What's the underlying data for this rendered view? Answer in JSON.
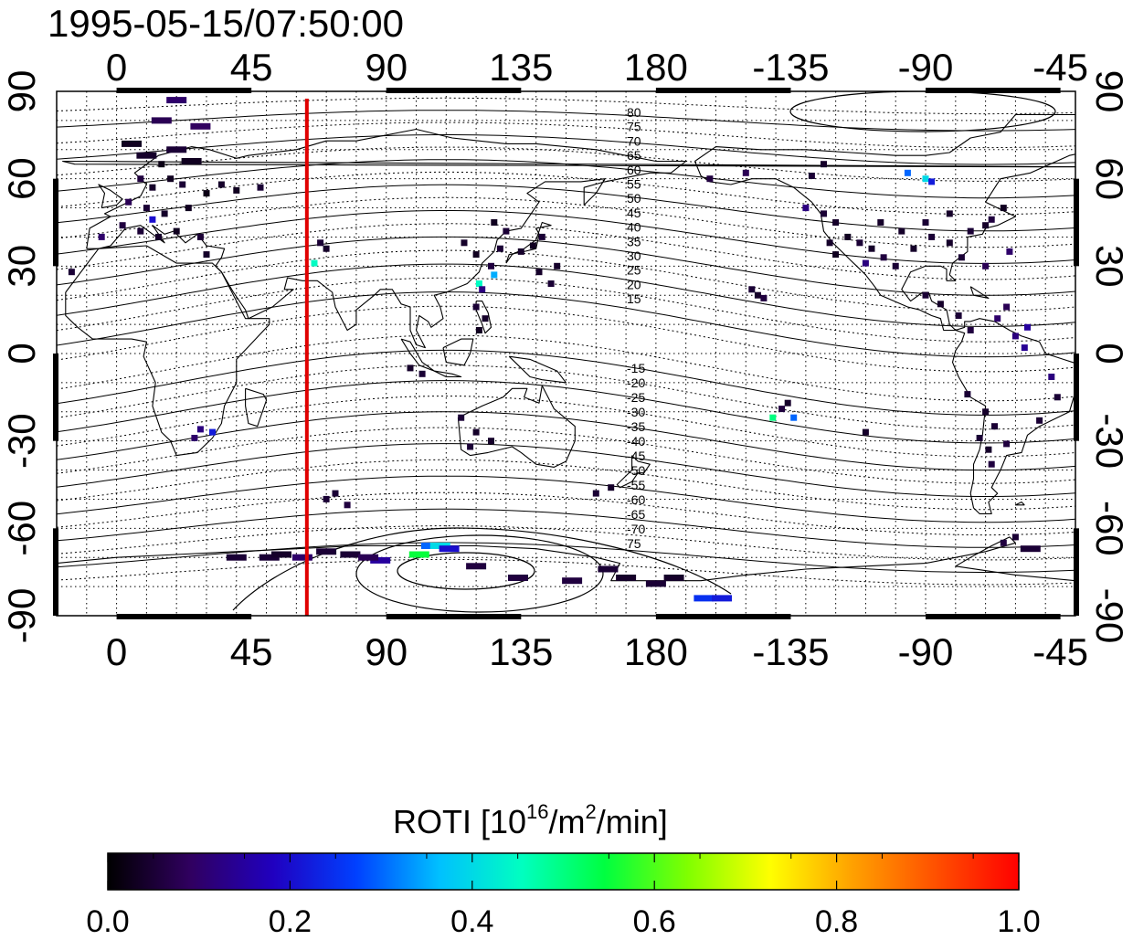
{
  "chart_data": {
    "type": "heatmap",
    "title": "1995-05-15/07:50:00",
    "x_top_ticks": [
      "0",
      "45",
      "90",
      "135",
      "180",
      "-135",
      "-90",
      "-45"
    ],
    "x_bottom_ticks": [
      "0",
      "45",
      "90",
      "135",
      "180",
      "-135",
      "-90",
      "-45"
    ],
    "y_left_ticks": [
      "90",
      "60",
      "30",
      "0",
      "-30",
      "-60",
      "-90"
    ],
    "y_right_ticks": [
      "90",
      "60",
      "30",
      "0",
      "-30",
      "-60",
      "-90"
    ],
    "xlim_lon": [
      -20,
      320
    ],
    "ylim_lat": [
      -90,
      90
    ],
    "grid": "dotted",
    "terminator_lon": 63.5,
    "terminator_color": "#e00000",
    "contour_labels_north": [
      "80",
      "75",
      "70",
      "65",
      "60",
      "55",
      "50",
      "45",
      "40",
      "35",
      "30",
      "25",
      "20",
      "15"
    ],
    "contour_labels_south": [
      "-15",
      "-20",
      "-25",
      "-30",
      "-35",
      "-40",
      "-45",
      "-50",
      "-55",
      "-60",
      "-65",
      "-70",
      "75"
    ],
    "colorbar": {
      "label_main": "ROTI  [10",
      "label_sup1": "16",
      "label_mid": "/m",
      "label_sup2": "2",
      "label_end": "/min]",
      "min": 0.0,
      "max": 1.0,
      "tick_labels": [
        "0.0",
        "0.2",
        "0.4",
        "0.6",
        "0.8",
        "1.0"
      ],
      "colors": [
        "#000000",
        "#300060",
        "#2000c0",
        "#0040ff",
        "#00c0ff",
        "#00ffc0",
        "#00ff40",
        "#80ff00",
        "#ffff00",
        "#ffa000",
        "#ff5000",
        "#ff0000"
      ]
    },
    "points": [
      {
        "lon": 5,
        "lat": 72,
        "v": 0.03
      },
      {
        "lon": 10,
        "lat": 68,
        "v": 0.04
      },
      {
        "lon": 15,
        "lat": 65,
        "v": 0.02
      },
      {
        "lon": 20,
        "lat": 70,
        "v": 0.05
      },
      {
        "lon": 25,
        "lat": 66,
        "v": 0.03
      },
      {
        "lon": 8,
        "lat": 60,
        "v": 0.06
      },
      {
        "lon": 12,
        "lat": 57,
        "v": 0.04
      },
      {
        "lon": 18,
        "lat": 60,
        "v": 0.03
      },
      {
        "lon": 22,
        "lat": 58,
        "v": 0.05
      },
      {
        "lon": 4,
        "lat": 52,
        "v": 0.08
      },
      {
        "lon": 10,
        "lat": 50,
        "v": 0.05
      },
      {
        "lon": 16,
        "lat": 48,
        "v": 0.04
      },
      {
        "lon": 24,
        "lat": 50,
        "v": 0.03
      },
      {
        "lon": 30,
        "lat": 55,
        "v": 0.02
      },
      {
        "lon": 35,
        "lat": 58,
        "v": 0.04
      },
      {
        "lon": 40,
        "lat": 56,
        "v": 0.03
      },
      {
        "lon": 48,
        "lat": 57,
        "v": 0.05
      },
      {
        "lon": 2,
        "lat": 44,
        "v": 0.06
      },
      {
        "lon": 8,
        "lat": 42,
        "v": 0.05
      },
      {
        "lon": 14,
        "lat": 40,
        "v": 0.04
      },
      {
        "lon": 20,
        "lat": 42,
        "v": 0.03
      },
      {
        "lon": 28,
        "lat": 40,
        "v": 0.05
      },
      {
        "lon": -5,
        "lat": 40,
        "v": 0.1
      },
      {
        "lon": 30,
        "lat": 34,
        "v": 0.04
      },
      {
        "lon": 15,
        "lat": 80,
        "v": 0.08
      },
      {
        "lon": 20,
        "lat": 87,
        "v": 0.1
      },
      {
        "lon": 28,
        "lat": 78,
        "v": 0.09
      },
      {
        "lon": -15,
        "lat": 28,
        "v": 0.05
      },
      {
        "lon": 12,
        "lat": 46,
        "v": 0.2
      },
      {
        "lon": 68,
        "lat": 38,
        "v": 0.05
      },
      {
        "lon": 70,
        "lat": 36,
        "v": 0.04
      },
      {
        "lon": 66,
        "lat": 31,
        "v": 0.45
      },
      {
        "lon": 116,
        "lat": 38,
        "v": 0.04
      },
      {
        "lon": 120,
        "lat": 34,
        "v": 0.03
      },
      {
        "lon": 128,
        "lat": 36,
        "v": 0.05
      },
      {
        "lon": 135,
        "lat": 35,
        "v": 0.04
      },
      {
        "lon": 139,
        "lat": 37,
        "v": 0.03
      },
      {
        "lon": 142,
        "lat": 40,
        "v": 0.05
      },
      {
        "lon": 125,
        "lat": 30,
        "v": 0.06
      },
      {
        "lon": 126,
        "lat": 27,
        "v": 0.35
      },
      {
        "lon": 121,
        "lat": 24,
        "v": 0.45
      },
      {
        "lon": 122,
        "lat": 22,
        "v": 0.12
      },
      {
        "lon": 120,
        "lat": 16,
        "v": 0.05
      },
      {
        "lon": 123,
        "lat": 12,
        "v": 0.04
      },
      {
        "lon": 121,
        "lat": 8,
        "v": 0.03
      },
      {
        "lon": 141,
        "lat": 28,
        "v": 0.04
      },
      {
        "lon": 145,
        "lat": 24,
        "v": 0.05
      },
      {
        "lon": 147,
        "lat": 30,
        "v": 0.04
      },
      {
        "lon": 126,
        "lat": 45,
        "v": 0.03
      },
      {
        "lon": 130,
        "lat": 42,
        "v": 0.05
      },
      {
        "lon": 98,
        "lat": -5,
        "v": 0.04
      },
      {
        "lon": 102,
        "lat": -7,
        "v": 0.05
      },
      {
        "lon": 28,
        "lat": -26,
        "v": 0.12
      },
      {
        "lon": 32,
        "lat": -27,
        "v": 0.22
      },
      {
        "lon": 26,
        "lat": -29,
        "v": 0.1
      },
      {
        "lon": 115,
        "lat": -22,
        "v": 0.05
      },
      {
        "lon": 120,
        "lat": -27,
        "v": 0.04
      },
      {
        "lon": 118,
        "lat": -32,
        "v": 0.05
      },
      {
        "lon": 125,
        "lat": -30,
        "v": 0.04
      },
      {
        "lon": 198,
        "lat": 60,
        "v": 0.06
      },
      {
        "lon": 210,
        "lat": 62,
        "v": 0.08
      },
      {
        "lon": 232,
        "lat": 61,
        "v": 0.05
      },
      {
        "lon": 236,
        "lat": 65,
        "v": 0.04
      },
      {
        "lon": 264,
        "lat": 62,
        "v": 0.3
      },
      {
        "lon": 270,
        "lat": 60,
        "v": 0.4
      },
      {
        "lon": 272,
        "lat": 59,
        "v": 0.22
      },
      {
        "lon": 230,
        "lat": 50,
        "v": 0.12
      },
      {
        "lon": 236,
        "lat": 48,
        "v": 0.05
      },
      {
        "lon": 240,
        "lat": 45,
        "v": 0.04
      },
      {
        "lon": 244,
        "lat": 40,
        "v": 0.03
      },
      {
        "lon": 248,
        "lat": 38,
        "v": 0.05
      },
      {
        "lon": 252,
        "lat": 36,
        "v": 0.04
      },
      {
        "lon": 256,
        "lat": 33,
        "v": 0.06
      },
      {
        "lon": 240,
        "lat": 34,
        "v": 0.03
      },
      {
        "lon": 238,
        "lat": 38,
        "v": 0.04
      },
      {
        "lon": 250,
        "lat": 31,
        "v": 0.12
      },
      {
        "lon": 260,
        "lat": 30,
        "v": 0.05
      },
      {
        "lon": 266,
        "lat": 36,
        "v": 0.04
      },
      {
        "lon": 272,
        "lat": 40,
        "v": 0.05
      },
      {
        "lon": 278,
        "lat": 38,
        "v": 0.04
      },
      {
        "lon": 285,
        "lat": 42,
        "v": 0.05
      },
      {
        "lon": 290,
        "lat": 44,
        "v": 0.04
      },
      {
        "lon": 282,
        "lat": 33,
        "v": 0.05
      },
      {
        "lon": 292,
        "lat": 46,
        "v": 0.06
      },
      {
        "lon": 296,
        "lat": 50,
        "v": 0.03
      },
      {
        "lon": 278,
        "lat": 48,
        "v": 0.04
      },
      {
        "lon": 270,
        "lat": 45,
        "v": 0.05
      },
      {
        "lon": 262,
        "lat": 42,
        "v": 0.04
      },
      {
        "lon": 255,
        "lat": 45,
        "v": 0.04
      },
      {
        "lon": 298,
        "lat": 35,
        "v": 0.1
      },
      {
        "lon": 290,
        "lat": 30,
        "v": 0.08
      },
      {
        "lon": 212,
        "lat": 22,
        "v": 0.05
      },
      {
        "lon": 214,
        "lat": 20,
        "v": 0.04
      },
      {
        "lon": 216,
        "lat": 19,
        "v": 0.06
      },
      {
        "lon": 270,
        "lat": 20,
        "v": 0.05
      },
      {
        "lon": 275,
        "lat": 17,
        "v": 0.04
      },
      {
        "lon": 281,
        "lat": 13,
        "v": 0.05
      },
      {
        "lon": 285,
        "lat": 8,
        "v": 0.06
      },
      {
        "lon": 294,
        "lat": 12,
        "v": 0.1
      },
      {
        "lon": 297,
        "lat": 16,
        "v": 0.08
      },
      {
        "lon": 300,
        "lat": 6,
        "v": 0.12
      },
      {
        "lon": 303,
        "lat": 2,
        "v": 0.14
      },
      {
        "lon": 304,
        "lat": 9,
        "v": 0.15
      },
      {
        "lon": 312,
        "lat": -8,
        "v": 0.12
      },
      {
        "lon": 314,
        "lat": -15,
        "v": 0.05
      },
      {
        "lon": 222,
        "lat": -19,
        "v": 0.06
      },
      {
        "lon": 224,
        "lat": -17,
        "v": 0.04
      },
      {
        "lon": 219,
        "lat": -22,
        "v": 0.5
      },
      {
        "lon": 226,
        "lat": -22,
        "v": 0.3
      },
      {
        "lon": 250,
        "lat": -27,
        "v": 0.04
      },
      {
        "lon": 284,
        "lat": -14,
        "v": 0.05
      },
      {
        "lon": 290,
        "lat": -20,
        "v": 0.04
      },
      {
        "lon": 293,
        "lat": -25,
        "v": 0.05
      },
      {
        "lon": 291,
        "lat": -33,
        "v": 0.04
      },
      {
        "lon": 288,
        "lat": -29,
        "v": 0.05
      },
      {
        "lon": 297,
        "lat": -31,
        "v": 0.06
      },
      {
        "lon": 308,
        "lat": -23,
        "v": 0.05
      },
      {
        "lon": 292,
        "lat": -38,
        "v": 0.06
      },
      {
        "lon": 70,
        "lat": -50,
        "v": 0.05
      },
      {
        "lon": 73,
        "lat": -48,
        "v": 0.05
      },
      {
        "lon": 77,
        "lat": -52,
        "v": 0.06
      },
      {
        "lon": 62,
        "lat": -70,
        "v": 0.1
      },
      {
        "lon": 70,
        "lat": -68,
        "v": 0.05
      },
      {
        "lon": 78,
        "lat": -69,
        "v": 0.05
      },
      {
        "lon": 88,
        "lat": -71,
        "v": 0.15
      },
      {
        "lon": 84,
        "lat": -70,
        "v": 0.08
      },
      {
        "lon": 40,
        "lat": -70,
        "v": 0.05
      },
      {
        "lon": 51,
        "lat": -70,
        "v": 0.05
      },
      {
        "lon": 55,
        "lat": -69,
        "v": 0.04
      },
      {
        "lon": 105,
        "lat": -66,
        "v": 0.3
      },
      {
        "lon": 108,
        "lat": -66,
        "v": 0.4
      },
      {
        "lon": 101,
        "lat": -69,
        "v": 0.55
      },
      {
        "lon": 111,
        "lat": -67,
        "v": 0.2
      },
      {
        "lon": 120,
        "lat": -73,
        "v": 0.06
      },
      {
        "lon": 134,
        "lat": -77,
        "v": 0.06
      },
      {
        "lon": 152,
        "lat": -78,
        "v": 0.06
      },
      {
        "lon": 164,
        "lat": -74,
        "v": 0.05
      },
      {
        "lon": 170,
        "lat": -77,
        "v": 0.04
      },
      {
        "lon": 180,
        "lat": -79,
        "v": 0.05
      },
      {
        "lon": 186,
        "lat": -77,
        "v": 0.04
      },
      {
        "lon": 196,
        "lat": -84,
        "v": 0.25
      },
      {
        "lon": 202,
        "lat": -84,
        "v": 0.22
      },
      {
        "lon": 160,
        "lat": -48,
        "v": 0.05
      },
      {
        "lon": 165,
        "lat": -46,
        "v": 0.04
      },
      {
        "lon": 296,
        "lat": -65,
        "v": 0.06
      },
      {
        "lon": 300,
        "lat": -63,
        "v": 0.05
      },
      {
        "lon": 305,
        "lat": -67,
        "v": 0.05
      }
    ]
  }
}
